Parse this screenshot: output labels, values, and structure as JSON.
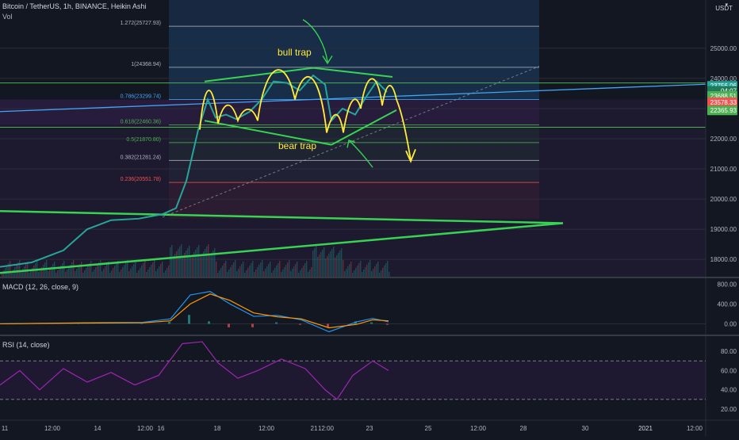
{
  "header": {
    "symbol_line": "Bitcoin / TetherUS, 1h, BINANCE, Heikin Ashi",
    "vol_label": "Vol",
    "currency": "USDT"
  },
  "colors": {
    "background": "#131722",
    "trend_green": "#4caf50",
    "annotation_yellow": "#ffeb3b",
    "macd_line": "#2196f3",
    "signal_line": "#ff9800",
    "rsi_line": "#9c27b0"
  },
  "indicators": {
    "macd_label": "MACD (12, 26, close, 9)",
    "rsi_label": "RSI (14, close)"
  },
  "annotations": {
    "bull_trap": "bull trap",
    "bear_trap": "bear trap"
  },
  "price_badges": [
    {
      "text": "23756.06",
      "color": "#26a69a",
      "price": 23756
    },
    {
      "text": "04:07",
      "color": "#1e7a5a",
      "price": 23590
    },
    {
      "text": "23688.51",
      "color": "#4caf50",
      "price": 23420
    },
    {
      "text": "23578.33",
      "color": "#ef5350",
      "price": 23210
    },
    {
      "text": "22365.93",
      "color": "#4caf50",
      "price": 22940
    }
  ],
  "chart_data": {
    "type": "line",
    "instrument": "BTCUSDT",
    "y_axis": {
      "range": [
        17400,
        26600
      ],
      "ticks": [
        18000,
        19000,
        20000,
        21000,
        22000,
        23000,
        24000,
        25000
      ],
      "tick_labels": [
        "18000.00",
        "19000.00",
        "20000.00",
        "21000.00",
        "22000.00",
        "23000.00",
        "24000.00",
        "25000.00"
      ]
    },
    "x_axis": {
      "labels": [
        "11",
        "12:00",
        "14",
        "12:00",
        "16",
        "18",
        "12:00",
        "21",
        "12:00",
        "23",
        "25",
        "12:00",
        "28",
        "30",
        "2021",
        "12:00"
      ]
    },
    "fibonacci": [
      {
        "label": "1.272(25727.93)",
        "price": 25728,
        "color": "#b2b5be"
      },
      {
        "label": "1(24368.94)",
        "price": 24369,
        "color": "#b2b5be"
      },
      {
        "label": "0.786(23299.74)",
        "price": 23300,
        "color": "#42a5f5"
      },
      {
        "label": "0.618(22460.36)",
        "price": 22460,
        "color": "#4caf50"
      },
      {
        "label": "0.5(21870.80)",
        "price": 21871,
        "color": "#4caf50"
      },
      {
        "label": "0.382(21281.24)",
        "price": 21281,
        "color": "#b2b5be"
      },
      {
        "label": "0.236(20551.78)",
        "price": 20552,
        "color": "#ef5350"
      }
    ],
    "price_series": [
      {
        "x": 0,
        "y": 17750
      },
      {
        "x": 40,
        "y": 17900
      },
      {
        "x": 80,
        "y": 18300
      },
      {
        "x": 110,
        "y": 19000
      },
      {
        "x": 140,
        "y": 19300
      },
      {
        "x": 175,
        "y": 19350
      },
      {
        "x": 205,
        "y": 19500
      },
      {
        "x": 222,
        "y": 19700
      },
      {
        "x": 235,
        "y": 20600
      },
      {
        "x": 250,
        "y": 22300
      },
      {
        "x": 262,
        "y": 23300
      },
      {
        "x": 272,
        "y": 22700
      },
      {
        "x": 285,
        "y": 22800
      },
      {
        "x": 298,
        "y": 22650
      },
      {
        "x": 315,
        "y": 22900
      },
      {
        "x": 330,
        "y": 23300
      },
      {
        "x": 345,
        "y": 23900
      },
      {
        "x": 362,
        "y": 23850
      },
      {
        "x": 378,
        "y": 23600
      },
      {
        "x": 395,
        "y": 24100
      },
      {
        "x": 410,
        "y": 23800
      },
      {
        "x": 418,
        "y": 22600
      },
      {
        "x": 432,
        "y": 23000
      },
      {
        "x": 448,
        "y": 22800
      },
      {
        "x": 462,
        "y": 23400
      },
      {
        "x": 475,
        "y": 23900
      },
      {
        "x": 488,
        "y": 23550
      }
    ],
    "macd": {
      "ticks": [
        800,
        400,
        0
      ],
      "tick_labels": [
        "800.00",
        "400.00",
        "0.00"
      ],
      "range": [
        -200,
        900
      ],
      "macd_line": [
        {
          "x": 0,
          "y": 0
        },
        {
          "x": 100,
          "y": 20
        },
        {
          "x": 180,
          "y": 30
        },
        {
          "x": 215,
          "y": 100
        },
        {
          "x": 240,
          "y": 580
        },
        {
          "x": 265,
          "y": 650
        },
        {
          "x": 290,
          "y": 400
        },
        {
          "x": 320,
          "y": 150
        },
        {
          "x": 350,
          "y": 170
        },
        {
          "x": 380,
          "y": 80
        },
        {
          "x": 415,
          "y": -160
        },
        {
          "x": 450,
          "y": 40
        },
        {
          "x": 470,
          "y": 110
        },
        {
          "x": 490,
          "y": 40
        }
      ],
      "signal_line": [
        {
          "x": 0,
          "y": 0
        },
        {
          "x": 100,
          "y": 15
        },
        {
          "x": 180,
          "y": 20
        },
        {
          "x": 215,
          "y": 60
        },
        {
          "x": 240,
          "y": 400
        },
        {
          "x": 265,
          "y": 600
        },
        {
          "x": 290,
          "y": 470
        },
        {
          "x": 320,
          "y": 220
        },
        {
          "x": 350,
          "y": 140
        },
        {
          "x": 380,
          "y": 100
        },
        {
          "x": 415,
          "y": -80
        },
        {
          "x": 450,
          "y": -10
        },
        {
          "x": 470,
          "y": 80
        },
        {
          "x": 490,
          "y": 60
        }
      ]
    },
    "rsi": {
      "ticks": [
        80,
        60,
        40,
        20
      ],
      "tick_labels": [
        "80.00",
        "60.00",
        "40.00",
        "20.00"
      ],
      "range": [
        10,
        95
      ],
      "overbought": 70,
      "oversold": 30,
      "values": [
        {
          "x": 0,
          "y": 45
        },
        {
          "x": 25,
          "y": 60
        },
        {
          "x": 50,
          "y": 40
        },
        {
          "x": 80,
          "y": 62
        },
        {
          "x": 110,
          "y": 48
        },
        {
          "x": 140,
          "y": 58
        },
        {
          "x": 170,
          "y": 45
        },
        {
          "x": 200,
          "y": 55
        },
        {
          "x": 230,
          "y": 88
        },
        {
          "x": 255,
          "y": 90
        },
        {
          "x": 275,
          "y": 68
        },
        {
          "x": 300,
          "y": 52
        },
        {
          "x": 325,
          "y": 60
        },
        {
          "x": 355,
          "y": 72
        },
        {
          "x": 385,
          "y": 62
        },
        {
          "x": 410,
          "y": 40
        },
        {
          "x": 425,
          "y": 30
        },
        {
          "x": 445,
          "y": 55
        },
        {
          "x": 470,
          "y": 70
        },
        {
          "x": 490,
          "y": 60
        }
      ]
    }
  }
}
